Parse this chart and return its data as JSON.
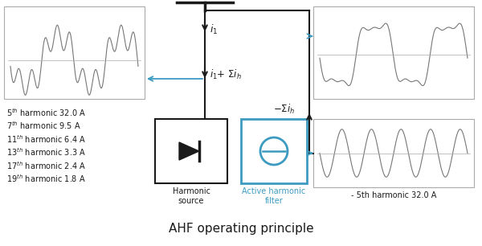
{
  "title": "AHF operating principle",
  "title_fontsize": 11,
  "background_color": "#ffffff",
  "harmonics": [
    {
      "order": "5",
      "value": "32.0 A"
    },
    {
      "order": "7",
      "value": "9.5 A"
    },
    {
      "order": "11",
      "value": "6.4 A"
    },
    {
      "order": "13",
      "value": "3.3 A"
    },
    {
      "order": "17",
      "value": "2.4 A"
    },
    {
      "order": "19",
      "value": "1.8 A"
    }
  ],
  "harmonic_source_label": "Harmonic\nsource",
  "ahf_label": "Active harmonic\nfilter",
  "neg5th_label": "- 5th harmonic 32.0 A",
  "blue_color": "#3d9bc1",
  "dark_color": "#1a1a1a",
  "gray_color": "#777777",
  "light_gray": "#aaaaaa",
  "arrow_color": "#3d9bc1"
}
